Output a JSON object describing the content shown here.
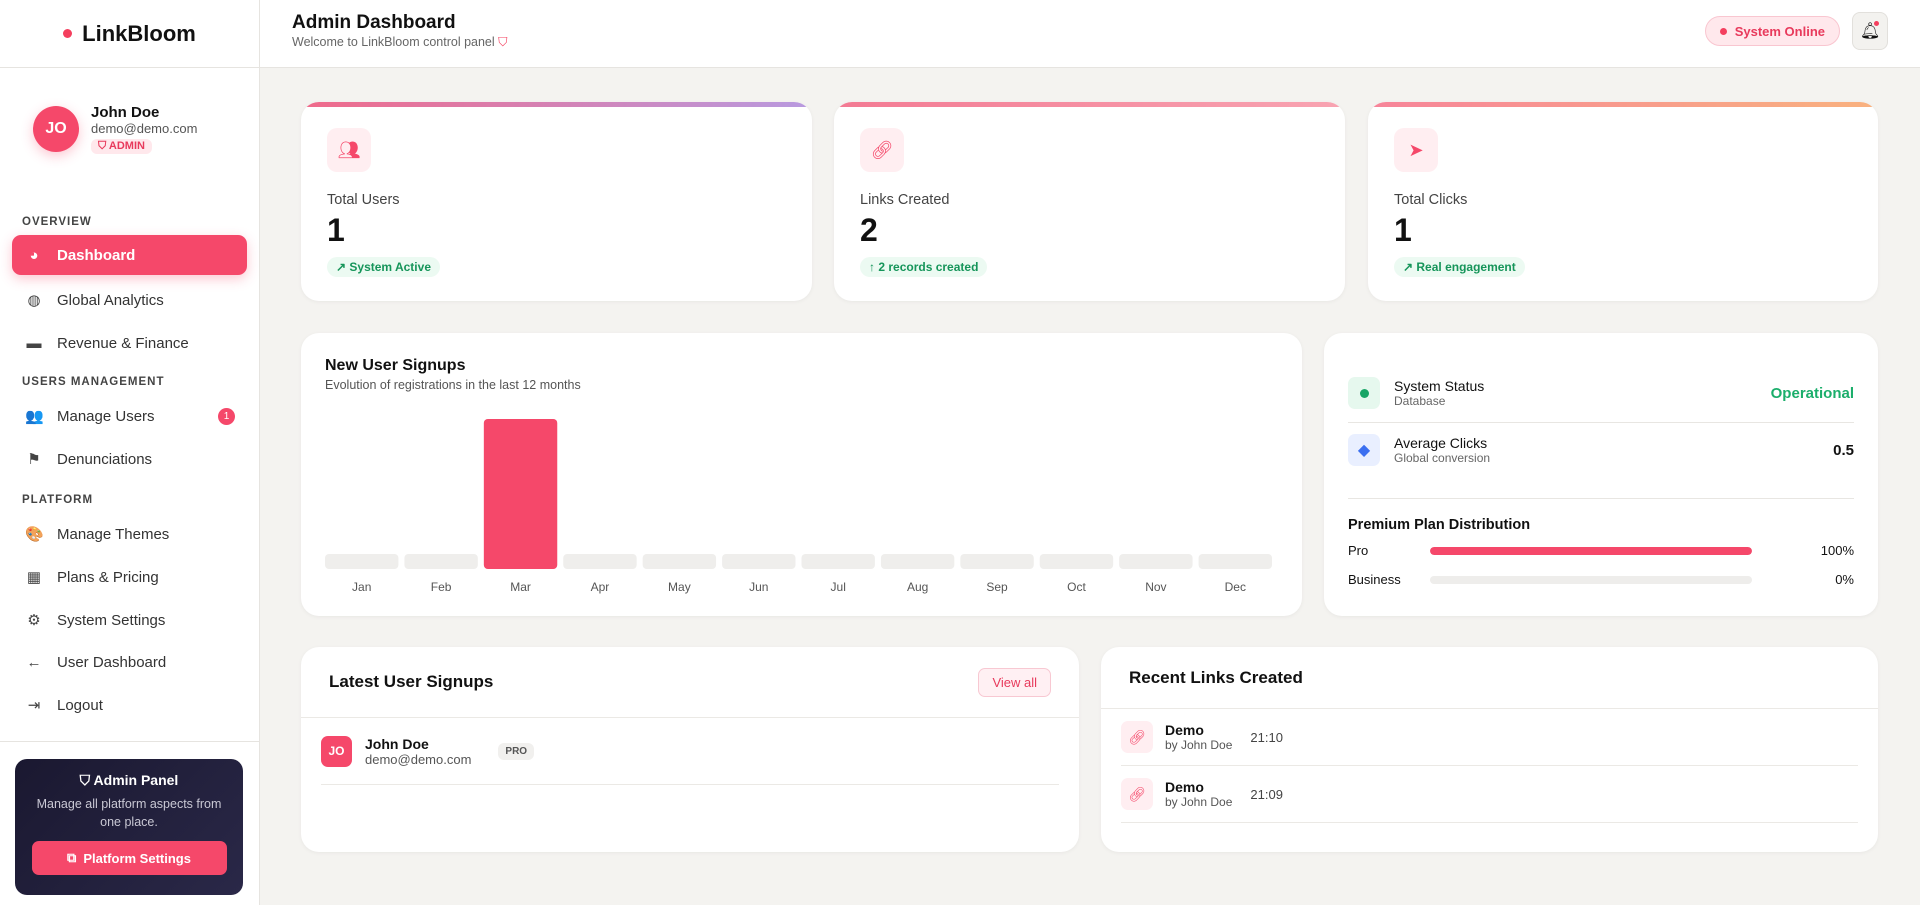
{
  "brand": {
    "name": "LinkBloom"
  },
  "header": {
    "title": "Admin Dashboard",
    "subtitle": "Welcome to LinkBloom control panel",
    "status": "System Online"
  },
  "profile": {
    "initials": "JO",
    "name": "John Doe",
    "email": "demo@demo.com",
    "role": "ADMIN"
  },
  "sidebar": {
    "sections": [
      "OVERVIEW",
      "USERS MANAGEMENT",
      "PLATFORM"
    ],
    "items": [
      {
        "label": "Dashboard",
        "icon": "pie-chart-icon"
      },
      {
        "label": "Global Analytics",
        "icon": "globe-icon"
      },
      {
        "label": "Revenue & Finance",
        "icon": "wallet-icon"
      },
      {
        "label": "Manage Users",
        "icon": "users-icon",
        "badge": "1"
      },
      {
        "label": "Denunciations",
        "icon": "flag-icon"
      },
      {
        "label": "Manage Themes",
        "icon": "palette-icon"
      },
      {
        "label": "Plans & Pricing",
        "icon": "boxes-icon"
      },
      {
        "label": "System Settings",
        "icon": "gear-icon"
      },
      {
        "label": "User Dashboard",
        "icon": "arrow-left-icon"
      },
      {
        "label": "Logout",
        "icon": "logout-icon"
      }
    ],
    "panel": {
      "title": "Admin Panel",
      "desc": "Manage all platform aspects from one place.",
      "button": "Platform Settings"
    }
  },
  "stats": [
    {
      "label": "Total Users",
      "value": "1",
      "note": "System Active",
      "color": "linear-gradient(90deg,#f06a8a,#b89ae0)"
    },
    {
      "label": "Links Created",
      "value": "2",
      "note": "2 records created",
      "color": "linear-gradient(90deg,#f37a93,#f8a4b2)"
    },
    {
      "label": "Total Clicks",
      "value": "1",
      "note": "Real engagement",
      "color": "linear-gradient(90deg,#f7849a,#f9b27f)"
    }
  ],
  "chart_data": {
    "type": "bar",
    "title": "New User Signups",
    "subtitle": "Evolution of registrations in the last 12 months",
    "categories": [
      "Jan",
      "Feb",
      "Mar",
      "Apr",
      "May",
      "Jun",
      "Jul",
      "Aug",
      "Sep",
      "Oct",
      "Nov",
      "Dec"
    ],
    "values": [
      0,
      0,
      1,
      0,
      0,
      0,
      0,
      0,
      0,
      0,
      0,
      0
    ],
    "ylim": [
      0,
      1
    ],
    "accent": "#f5486a"
  },
  "system": {
    "status": {
      "name": "System Status",
      "sub": "Database",
      "value": "Operational"
    },
    "avg": {
      "name": "Average Clicks",
      "sub": "Global conversion",
      "value": "0.5"
    },
    "plans_title": "Premium Plan Distribution",
    "plans": [
      {
        "name": "Pro",
        "pct_label": "100%",
        "pct": 100
      },
      {
        "name": "Business",
        "pct_label": "0%",
        "pct": 0
      }
    ]
  },
  "latest": {
    "title": "Latest User Signups",
    "view_all": "View all",
    "users": [
      {
        "initials": "JO",
        "name": "John Doe",
        "email": "demo@demo.com",
        "plan": "PRO"
      }
    ]
  },
  "recent": {
    "title": "Recent Links Created",
    "links": [
      {
        "name": "Demo",
        "by": "by John Doe",
        "time": "21:10"
      },
      {
        "name": "Demo",
        "by": "by John Doe",
        "time": "21:09"
      }
    ]
  }
}
